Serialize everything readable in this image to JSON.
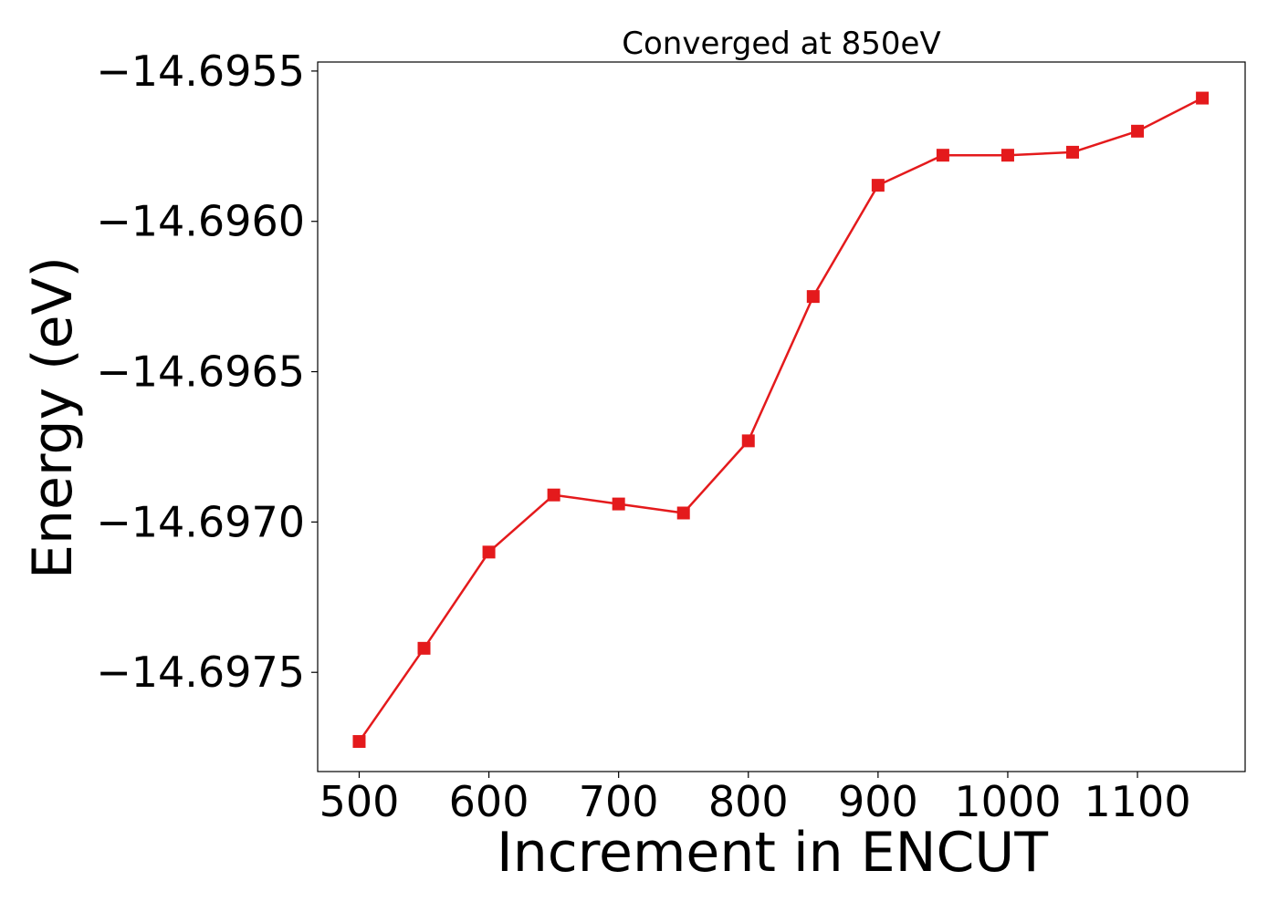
{
  "chart_data": {
    "type": "line",
    "title": "Converged at 850eV",
    "xlabel": "Increment in ENCUT",
    "ylabel": "Energy (eV)",
    "x": [
      500,
      550,
      600,
      650,
      700,
      750,
      800,
      850,
      900,
      950,
      1000,
      1050,
      1100,
      1150
    ],
    "series": [
      {
        "values": [
          -14.69773,
          -14.69742,
          -14.6971,
          -14.69691,
          -14.69694,
          -14.69697,
          -14.69673,
          -14.69625,
          -14.69588,
          -14.69578,
          -14.69578,
          -14.69577,
          -14.6957,
          -14.69559
        ],
        "color": "#e41a1c",
        "marker": "square"
      }
    ],
    "xlim": [
      468,
      1183
    ],
    "ylim": [
      -14.69783,
      -14.69547
    ],
    "xticks": [
      500,
      600,
      700,
      800,
      900,
      1000,
      1100
    ],
    "xtick_labels": [
      "500",
      "600",
      "700",
      "800",
      "900",
      "1000",
      "1100"
    ],
    "yticks": [
      -14.6975,
      -14.697,
      -14.6965,
      -14.696,
      -14.6955
    ],
    "ytick_labels": [
      "−14.6975",
      "−14.6970",
      "−14.6965",
      "−14.6960",
      "−14.6955"
    ],
    "grid": false,
    "legend": false
  }
}
